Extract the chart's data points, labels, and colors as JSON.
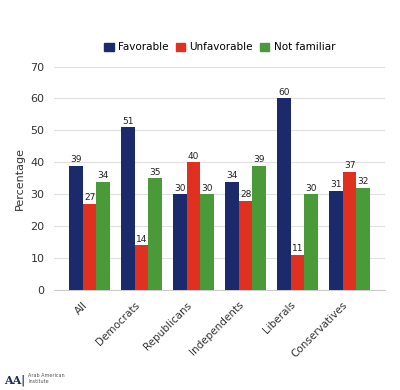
{
  "categories": [
    "All",
    "Democrats",
    "Republicans",
    "Independents",
    "Liberals",
    "Conservatives"
  ],
  "favorable": [
    39,
    51,
    30,
    34,
    60,
    31
  ],
  "unfavorable": [
    27,
    14,
    40,
    28,
    11,
    37
  ],
  "not_familiar": [
    34,
    35,
    30,
    39,
    30,
    32
  ],
  "color_favorable": "#1b2a6b",
  "color_unfavorable": "#e03020",
  "color_not_familiar": "#4a9a3a",
  "ylabel": "Percentage",
  "ylim": [
    0,
    70
  ],
  "yticks": [
    0,
    10,
    20,
    30,
    40,
    50,
    60,
    70
  ],
  "legend_labels": [
    "Favorable",
    "Unfavorable",
    "Not familiar"
  ],
  "bar_width": 0.26,
  "background_color": "#ffffff"
}
